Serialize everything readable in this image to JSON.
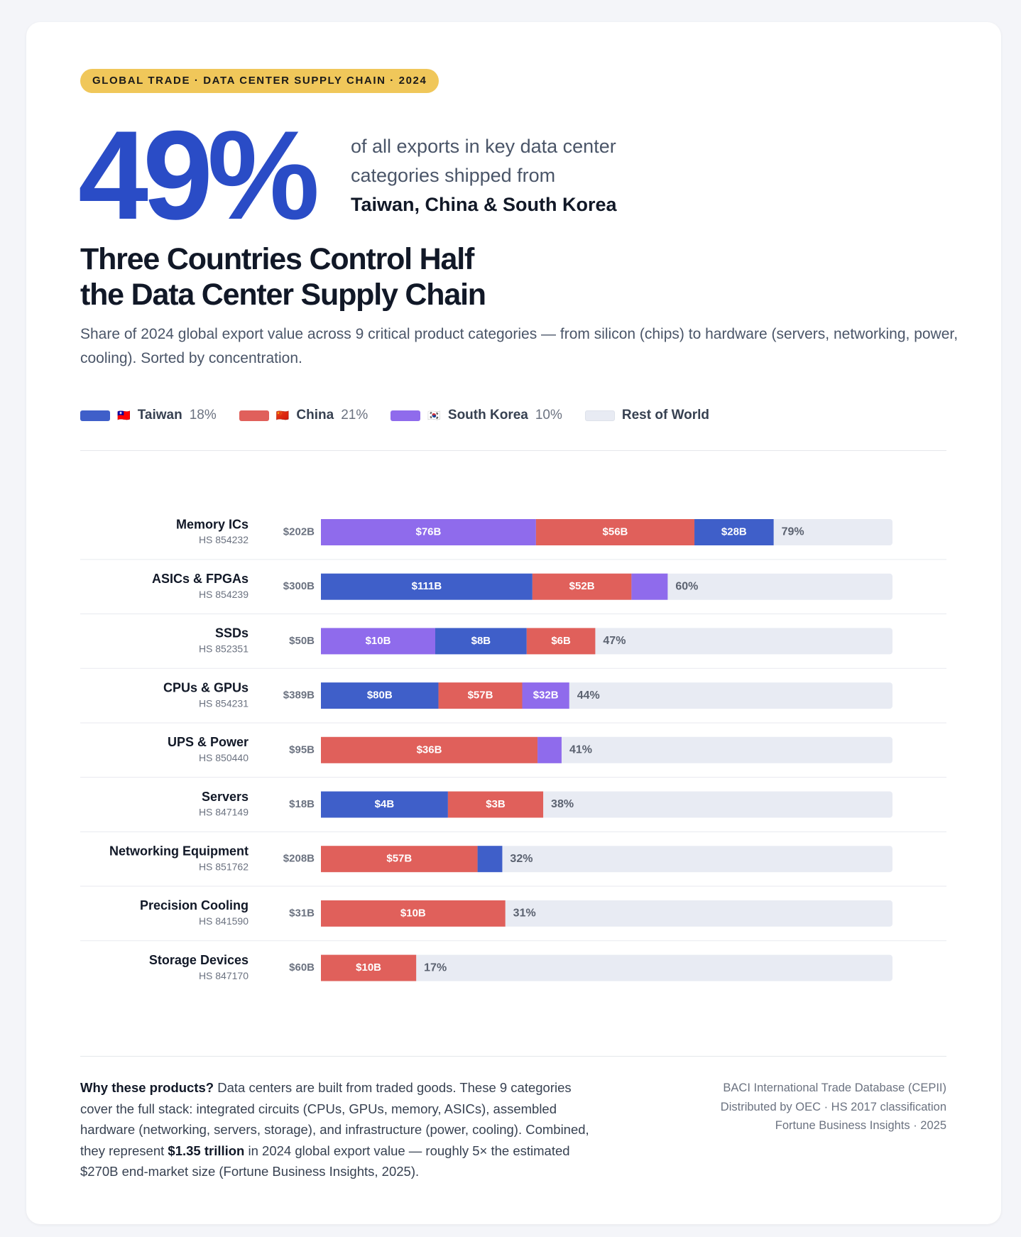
{
  "badge": "GLOBAL TRADE · DATA CENTER SUPPLY CHAIN · 2024",
  "headline": {
    "stat": "49%",
    "lines": [
      "of all exports in key data center",
      "categories shipped from"
    ],
    "highlight": "Taiwan, China & South Korea"
  },
  "title_lines": [
    "Three Countries Control Half",
    "the Data Center Supply Chain"
  ],
  "subtitle": "Share of 2024 global export value across 9 critical product categories — from silicon (chips) to hardware (servers, networking, power, cooling). Sorted by concentration.",
  "chart_data": {
    "type": "bar",
    "series": [
      {
        "name": "Taiwan",
        "flag": "🇹🇼",
        "color": "#3f5fc9",
        "share_label": "18%"
      },
      {
        "name": "China",
        "flag": "🇨🇳",
        "color": "#e0605b",
        "share_label": "21%"
      },
      {
        "name": "South Korea",
        "flag": "🇰🇷",
        "color": "#8f6bec",
        "share_label": "10%"
      },
      {
        "name": "Rest of World",
        "color": "#e8ebf3"
      }
    ],
    "rows": [
      {
        "name": "Memory ICs",
        "code": "HS 854232",
        "total": 202,
        "total_label": "$202B",
        "share_label": "79%",
        "segments": [
          {
            "country": "South Korea",
            "value": 76,
            "label": "$76B"
          },
          {
            "country": "China",
            "value": 56,
            "label": "$56B"
          },
          {
            "country": "Taiwan",
            "value": 28,
            "label": "$28B"
          }
        ]
      },
      {
        "name": "ASICs & FPGAs",
        "code": "HS 854239",
        "total": 300,
        "total_label": "$300B",
        "share_label": "60%",
        "segments": [
          {
            "country": "Taiwan",
            "value": 111,
            "label": "$111B"
          },
          {
            "country": "China",
            "value": 52,
            "label": "$52B"
          },
          {
            "country": "South Korea",
            "value": 19,
            "label": null
          }
        ]
      },
      {
        "name": "SSDs",
        "code": "HS 852351",
        "total": 50,
        "total_label": "$50B",
        "share_label": "47%",
        "segments": [
          {
            "country": "South Korea",
            "value": 10,
            "label": "$10B"
          },
          {
            "country": "Taiwan",
            "value": 8,
            "label": "$8B"
          },
          {
            "country": "China",
            "value": 6,
            "label": "$6B"
          }
        ]
      },
      {
        "name": "CPUs & GPUs",
        "code": "HS 854231",
        "total": 389,
        "total_label": "$389B",
        "share_label": "44%",
        "segments": [
          {
            "country": "Taiwan",
            "value": 80,
            "label": "$80B"
          },
          {
            "country": "China",
            "value": 57,
            "label": "$57B"
          },
          {
            "country": "South Korea",
            "value": 32,
            "label": "$32B"
          }
        ]
      },
      {
        "name": "UPS & Power",
        "code": "HS 850440",
        "total": 95,
        "total_label": "$95B",
        "share_label": "41%",
        "segments": [
          {
            "country": "China",
            "value": 36,
            "label": "$36B"
          },
          {
            "country": "South Korea",
            "value": 4,
            "label": null
          }
        ]
      },
      {
        "name": "Servers",
        "code": "HS 847149",
        "total": 18,
        "total_label": "$18B",
        "share_label": "38%",
        "segments": [
          {
            "country": "Taiwan",
            "value": 4,
            "label": "$4B"
          },
          {
            "country": "China",
            "value": 3,
            "label": "$3B"
          }
        ]
      },
      {
        "name": "Networking Equipment",
        "code": "HS 851762",
        "total": 208,
        "total_label": "$208B",
        "share_label": "32%",
        "segments": [
          {
            "country": "China",
            "value": 57,
            "label": "$57B"
          },
          {
            "country": "Taiwan",
            "value": 9,
            "label": null
          }
        ]
      },
      {
        "name": "Precision Cooling",
        "code": "HS 841590",
        "total": 31,
        "total_label": "$31B",
        "share_label": "31%",
        "segments": [
          {
            "country": "China",
            "value": 10,
            "label": "$10B"
          }
        ]
      },
      {
        "name": "Storage Devices",
        "code": "HS 847170",
        "total": 60,
        "total_label": "$60B",
        "share_label": "17%",
        "segments": [
          {
            "country": "China",
            "value": 10,
            "label": "$10B"
          }
        ]
      }
    ]
  },
  "note": {
    "lead": "Why these products?",
    "text1": " Data centers are built from traded goods. These 9 categories cover the full stack: integrated circuits (CPUs, GPUs, memory, ASICs), assembled hardware (networking, servers, storage), and infrastructure (power, cooling). Combined, they represent ",
    "strong": "$1.35 trillion",
    "text2": " in 2024 global export value — roughly 5× the estimated $270B end-market size (Fortune Business Insights, 2025)."
  },
  "sources": [
    "BACI International Trade Database (CEPII)",
    "Distributed by OEC · HS 2017 classification",
    "Fortune Business Insights · 2025"
  ]
}
